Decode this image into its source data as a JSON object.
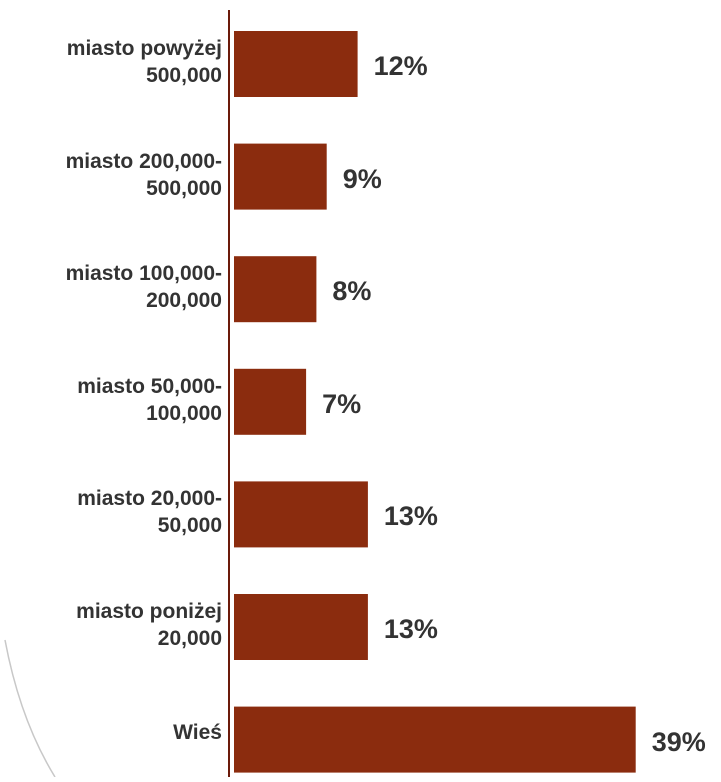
{
  "chart_data": {
    "type": "bar",
    "orientation": "horizontal",
    "categories": [
      [
        "miasto powyżej",
        "500,000"
      ],
      [
        "miasto 200,000-",
        "500,000"
      ],
      [
        "miasto 100,000-",
        "200,000"
      ],
      [
        "miasto 50,000-",
        "100,000"
      ],
      [
        "miasto 20,000-",
        "50,000"
      ],
      [
        "miasto poniżej",
        "20,000"
      ],
      [
        "Wieś"
      ]
    ],
    "values": [
      12,
      9,
      8,
      7,
      13,
      13,
      39
    ],
    "value_labels": [
      "12%",
      "9%",
      "8%",
      "7%",
      "13%",
      "13%",
      "39%"
    ],
    "xlim": [
      0,
      40
    ],
    "grid": false,
    "legend": "none",
    "colors": {
      "bar": "#8B2C0E",
      "axis": "#6B1A0A",
      "text": "#333333",
      "background_arc": "#C8C8C8"
    }
  }
}
